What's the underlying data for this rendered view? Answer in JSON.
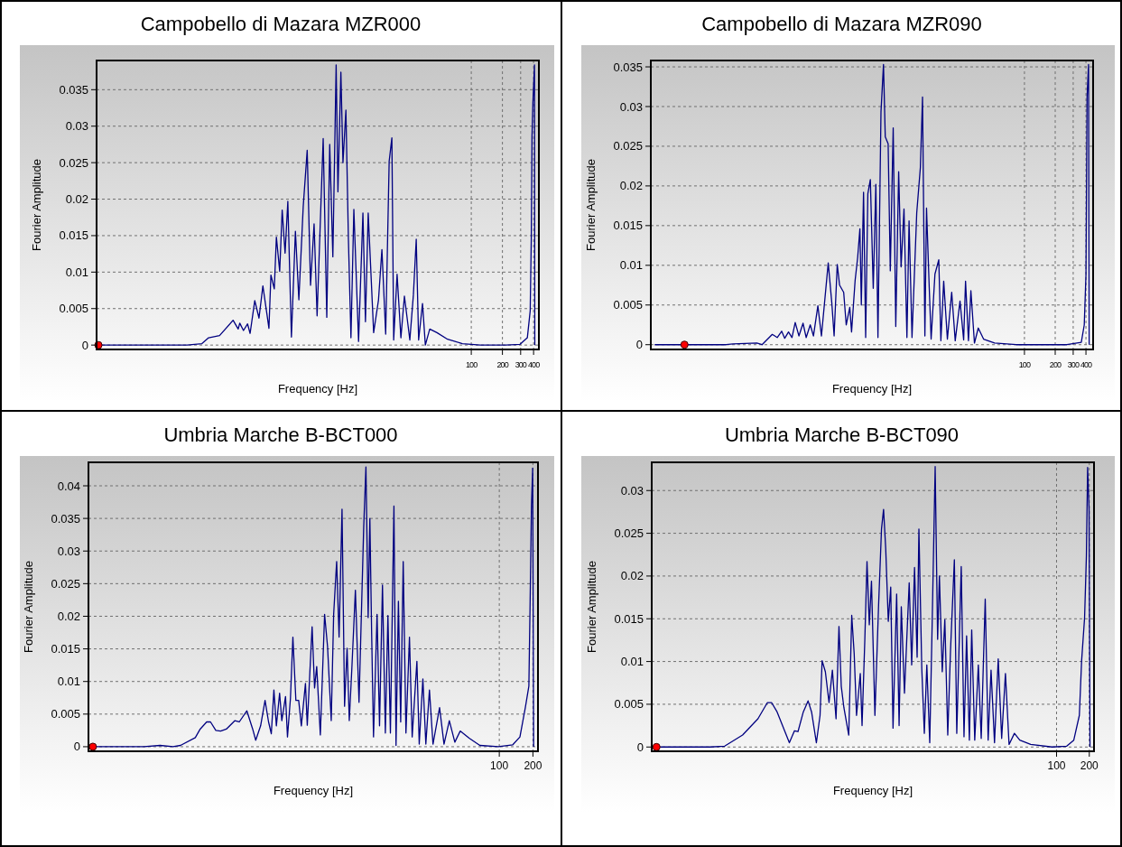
{
  "chart_data": [
    {
      "type": "line",
      "title": "Campobello di Mazara MZR000",
      "xlabel": "Frequency [Hz]",
      "ylabel": "Fourier Amplitude",
      "log": "x",
      "grid": true,
      "xlim": [
        0.024,
        450
      ],
      "ylim": [
        -0.0006,
        0.039
      ],
      "xticks": [
        100,
        200,
        300,
        400
      ],
      "yticks": [
        0,
        0.005,
        0.01,
        0.015,
        0.02,
        0.025,
        0.03,
        0.035
      ],
      "series": [
        {
          "color": "#000080",
          "x": [
            0.025,
            0.18,
            0.25,
            0.29,
            0.37,
            0.5,
            0.56,
            0.58,
            0.63,
            0.69,
            0.73,
            0.81,
            0.89,
            0.97,
            1.05,
            1.11,
            1.16,
            1.25,
            1.31,
            1.41,
            1.49,
            1.59,
            1.69,
            1.83,
            2.0,
            2.16,
            2.38,
            2.6,
            2.8,
            3.03,
            3.24,
            3.71,
            4.02,
            4.29,
            4.6,
            4.95,
            5.15,
            5.5,
            5.76,
            6.15,
            6.5,
            6.88,
            7.34,
            8.15,
            8.98,
            9.5,
            10.1,
            11.4,
            12.7,
            13.7,
            14.9,
            16.1,
            17.1,
            17.8,
            19.2,
            20.9,
            22.6,
            25.5,
            27.6,
            29.4,
            31,
            33.8,
            36,
            39.7,
            46.6,
            59,
            82,
            122,
            215,
            296,
            348,
            371,
            380,
            386,
            394,
            408,
            411
          ],
          "values": [
            0,
            0,
            0.0002,
            0.001,
            0.0013,
            0.0034,
            0.0022,
            0.003,
            0.002,
            0.0029,
            0.0016,
            0.0061,
            0.0037,
            0.0081,
            0.0047,
            0.0023,
            0.0096,
            0.0077,
            0.0148,
            0.0101,
            0.0185,
            0.0126,
            0.0197,
            0.0011,
            0.0156,
            0.0062,
            0.019,
            0.0267,
            0.0082,
            0.0166,
            0.004,
            0.0283,
            0.0038,
            0.0275,
            0.0121,
            0.0384,
            0.021,
            0.0374,
            0.025,
            0.0322,
            0.0146,
            0.001,
            0.0186,
            0.0005,
            0.0181,
            0.0032,
            0.0181,
            0.0017,
            0.0062,
            0.0131,
            0.0015,
            0.0252,
            0.0284,
            0.0007,
            0.0097,
            0.001,
            0.0067,
            0.0007,
            0.0069,
            0.0145,
            0.0007,
            0.0057,
            0,
            0.0022,
            0.0017,
            0.0008,
            0.0002,
            0,
            0,
            0.0001,
            0.001,
            0.0047,
            0.0146,
            0.0285,
            0.0332,
            0.0384,
            0
          ]
        },
        {
          "type": "scatter",
          "color": "#ff0000",
          "marker": "circle",
          "x": [
            0.025
          ],
          "values": [
            0
          ]
        }
      ]
    },
    {
      "type": "line",
      "title": "Campobello di Mazara MZR090",
      "xlabel": "Frequency [Hz]",
      "ylabel": "Fourier Amplitude",
      "log": "x",
      "grid": true,
      "xlim": [
        0.022,
        470
      ],
      "ylim": [
        -0.0006,
        0.0358
      ],
      "xticks": [
        100,
        200,
        300,
        400
      ],
      "yticks": [
        0,
        0.005,
        0.01,
        0.015,
        0.02,
        0.025,
        0.03,
        0.035
      ],
      "series": [
        {
          "color": "#000080",
          "x": [
            0.024,
            0.12,
            0.14,
            0.24,
            0.27,
            0.34,
            0.38,
            0.42,
            0.45,
            0.49,
            0.53,
            0.57,
            0.62,
            0.68,
            0.73,
            0.8,
            0.86,
            0.95,
            1.03,
            1.2,
            1.3,
            1.37,
            1.47,
            1.55,
            1.7,
            1.8,
            1.95,
            2.03,
            2.2,
            2.33,
            2.45,
            2.53,
            2.66,
            2.79,
            2.93,
            3.1,
            3.31,
            3.51,
            3.68,
            3.94,
            4.17,
            4.34,
            4.63,
            4.86,
            5.19,
            5.5,
            5.87,
            6.2,
            6.62,
            7.07,
            7.42,
            7.93,
            8.82,
            9.57,
            10.05,
            10.6,
            11,
            11.7,
            12.2,
            13.3,
            14.5,
            15.2,
            16.2,
            17.6,
            19.4,
            21,
            23.4,
            25.4,
            26.5,
            28.3,
            29.9,
            32.4,
            35.3,
            39.8,
            51,
            83,
            260,
            360,
            385,
            400,
            410,
            424,
            430
          ],
          "values": [
            0,
            0,
            0.0001,
            0.0002,
            0,
            0.0013,
            0.0009,
            0.0017,
            0.0008,
            0.0016,
            0.0009,
            0.0028,
            0.0011,
            0.0027,
            0.0009,
            0.0025,
            0.0011,
            0.0049,
            0.0011,
            0.0103,
            0.0053,
            0.0011,
            0.0101,
            0.0075,
            0.0066,
            0.0025,
            0.0047,
            0.0016,
            0.0081,
            0.011,
            0.0146,
            0.005,
            0.0192,
            0.0009,
            0.019,
            0.0208,
            0.0071,
            0.0202,
            0.0009,
            0.0293,
            0.0353,
            0.0262,
            0.0253,
            0.0093,
            0.0273,
            0.0023,
            0.0218,
            0.0098,
            0.0171,
            0.0009,
            0.0156,
            0.0009,
            0.0166,
            0.0223,
            0.0312,
            0.0011,
            0.0172,
            0.0071,
            0.0007,
            0.0089,
            0.0107,
            0.0005,
            0.008,
            0.0007,
            0.0066,
            0.0005,
            0.0055,
            0.0006,
            0.008,
            0.0005,
            0.0068,
            0.0002,
            0.0021,
            0.0007,
            0.0002,
            0,
            0,
            0.0003,
            0.0025,
            0.0088,
            0.0312,
            0.0353,
            0
          ]
        },
        {
          "type": "scatter",
          "color": "#ff0000",
          "marker": "circle",
          "x": [
            0.047
          ],
          "values": [
            0
          ]
        }
      ]
    },
    {
      "type": "line",
      "title": "Umbria Marche B-BCT000",
      "xlabel": "Frequency [Hz]",
      "ylabel": "Fourier Amplitude",
      "log": "x",
      "grid": true,
      "xlim": [
        0.021,
        222
      ],
      "ylim": [
        -0.0007,
        0.0436
      ],
      "xticks": [
        100,
        200
      ],
      "yticks": [
        0,
        0.005,
        0.01,
        0.015,
        0.02,
        0.025,
        0.03,
        0.035,
        0.04
      ],
      "series": [
        {
          "color": "#000080",
          "x": [
            0.023,
            0.066,
            0.092,
            0.12,
            0.14,
            0.19,
            0.21,
            0.24,
            0.26,
            0.29,
            0.32,
            0.36,
            0.43,
            0.47,
            0.55,
            0.62,
            0.66,
            0.73,
            0.8,
            0.86,
            0.91,
            0.96,
            1.01,
            1.08,
            1.13,
            1.22,
            1.27,
            1.35,
            1.42,
            1.51,
            1.6,
            1.69,
            1.84,
            1.91,
            2.11,
            2.22,
            2.32,
            2.5,
            2.73,
            2.9,
            3.13,
            3.29,
            3.5,
            3.68,
            3.91,
            4.12,
            4.34,
            4.54,
            4.79,
            5.15,
            5.55,
            6.11,
            6.4,
            6.7,
            6.94,
            7.2,
            7.48,
            8.05,
            8.47,
            9,
            9.55,
            10.07,
            10.6,
            11.4,
            11.9,
            12.5,
            13.1,
            13.8,
            14.6,
            15.7,
            16.6,
            18.3,
            19.2,
            20.7,
            22,
            23.7,
            25.5,
            29.2,
            32,
            35.7,
            40,
            44.7,
            53.8,
            67,
            98,
            132,
            153,
            171,
            184,
            191,
            194,
            199,
            203
          ],
          "values": [
            0,
            0,
            0.0002,
            0,
            0.0002,
            0.0014,
            0.0027,
            0.0038,
            0.0038,
            0.0025,
            0.0024,
            0.0027,
            0.004,
            0.0038,
            0.0055,
            0.0027,
            0.001,
            0.0032,
            0.0071,
            0.0038,
            0.002,
            0.0087,
            0.0032,
            0.0082,
            0.004,
            0.0077,
            0.0015,
            0.0074,
            0.0168,
            0.0071,
            0.0071,
            0.0032,
            0.0097,
            0.0033,
            0.0184,
            0.009,
            0.0123,
            0.0018,
            0.0203,
            0.0154,
            0.004,
            0.0203,
            0.0284,
            0.0168,
            0.0364,
            0.0062,
            0.0151,
            0.004,
            0.0121,
            0.024,
            0.0068,
            0.0336,
            0.0429,
            0.0198,
            0.035,
            0.0173,
            0.0015,
            0.0203,
            0.0032,
            0.0248,
            0.0021,
            0.0201,
            0.0021,
            0.0369,
            0.0002,
            0.0223,
            0.0038,
            0.0284,
            0.0021,
            0.0168,
            0.0015,
            0.0131,
            0.0004,
            0.0104,
            0.0004,
            0.0087,
            0.0004,
            0.006,
            0.0004,
            0.004,
            0.0007,
            0.0024,
            0.0013,
            0.0002,
            0,
            0.0003,
            0.0015,
            0.006,
            0.0093,
            0.0281,
            0.0369,
            0.0427,
            0
          ]
        },
        {
          "type": "scatter",
          "color": "#ff0000",
          "marker": "circle",
          "x": [
            0.023
          ],
          "values": [
            0
          ]
        }
      ]
    },
    {
      "type": "line",
      "title": "Umbria Marche B-BCT090",
      "xlabel": "Frequency [Hz]",
      "ylabel": "Fourier Amplitude",
      "log": "x",
      "grid": true,
      "xlim": [
        0.019,
        221
      ],
      "ylim": [
        -0.0005,
        0.0333
      ],
      "xticks": [
        100,
        200
      ],
      "yticks": [
        0,
        0.005,
        0.01,
        0.015,
        0.02,
        0.025,
        0.03
      ],
      "series": [
        {
          "color": "#000080",
          "x": [
            0.021,
            0.065,
            0.089,
            0.13,
            0.18,
            0.22,
            0.24,
            0.27,
            0.35,
            0.39,
            0.42,
            0.47,
            0.52,
            0.56,
            0.62,
            0.67,
            0.7,
            0.75,
            0.81,
            0.87,
            0.94,
            1.0,
            1.05,
            1.11,
            1.23,
            1.31,
            1.38,
            1.45,
            1.57,
            1.63,
            1.73,
            1.81,
            1.9,
            1.99,
            2.14,
            2.31,
            2.46,
            2.57,
            2.69,
            2.84,
            2.99,
            3.14,
            3.39,
            3.57,
            3.74,
            4,
            4.42,
            4.66,
            4.95,
            5.23,
            5.43,
            5.77,
            6.09,
            6.42,
            6.83,
            7.2,
            7.66,
            8.07,
            8.38,
            8.9,
            9.4,
            10,
            10.6,
            11.5,
            12.1,
            13.3,
            14.1,
            14.9,
            15.8,
            16.6,
            17.7,
            19.1,
            20.3,
            22.1,
            23.5,
            25,
            26.9,
            29.1,
            31.3,
            33.9,
            36.6,
            41,
            45.9,
            57.8,
            91,
            124,
            144,
            162,
            170,
            181,
            188,
            193,
            199,
            203
          ],
          "values": [
            0,
            0,
            0.0001,
            0.0014,
            0.0033,
            0.0052,
            0.0052,
            0.0041,
            0.0005,
            0.0019,
            0.0018,
            0.0041,
            0.0054,
            0.0041,
            0.0005,
            0.0037,
            0.0101,
            0.0088,
            0.0052,
            0.009,
            0.0033,
            0.0141,
            0.0071,
            0.0046,
            0.0014,
            0.0154,
            0.0109,
            0.0037,
            0.0086,
            0.0025,
            0.0127,
            0.0217,
            0.0143,
            0.0194,
            0.0037,
            0.0164,
            0.0255,
            0.0278,
            0.0232,
            0.0147,
            0.0187,
            0.0022,
            0.0179,
            0.0025,
            0.0164,
            0.0063,
            0.0192,
            0.0096,
            0.021,
            0.0105,
            0.0255,
            0.0092,
            0.0016,
            0.0096,
            0.0005,
            0.0149,
            0.0328,
            0.0126,
            0.02,
            0.0088,
            0.0149,
            0.0014,
            0.0113,
            0.0219,
            0.0016,
            0.0211,
            0.0012,
            0.013,
            0.0008,
            0.0137,
            0.0008,
            0.0096,
            0.001,
            0.0173,
            0.0008,
            0.009,
            0.0005,
            0.0103,
            0.001,
            0.0086,
            0.0003,
            0.0016,
            0.0008,
            0.0003,
            0,
            0.0001,
            0.0008,
            0.0037,
            0.0101,
            0.0151,
            0.0223,
            0.0327,
            0.0278,
            0
          ]
        },
        {
          "type": "scatter",
          "color": "#ff0000",
          "marker": "circle",
          "x": [
            0.021
          ],
          "values": [
            0
          ]
        }
      ]
    }
  ]
}
